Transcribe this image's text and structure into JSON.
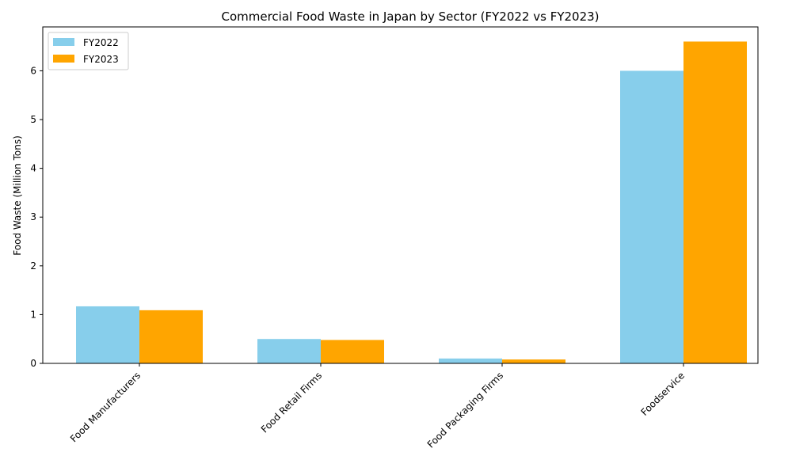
{
  "chart_data": {
    "type": "bar",
    "title": "Commercial Food Waste in Japan by Sector (FY2022 vs FY2023)",
    "xlabel": "",
    "ylabel": "Food Waste (Million Tons)",
    "categories": [
      "Food Manufacturers",
      "Food Retail Firms",
      "Food Packaging Firms",
      "Foodservice"
    ],
    "series": [
      {
        "name": "FY2022",
        "color": "#87ceeb",
        "values": [
          1.17,
          0.5,
          0.1,
          6.0
        ]
      },
      {
        "name": "FY2023",
        "color": "#ffa500",
        "values": [
          1.09,
          0.48,
          0.08,
          6.6
        ]
      }
    ],
    "ylim": [
      0,
      6.9
    ],
    "yticks": [
      0,
      1,
      2,
      3,
      4,
      5,
      6
    ],
    "grid": false,
    "legend_position": "top-left"
  }
}
